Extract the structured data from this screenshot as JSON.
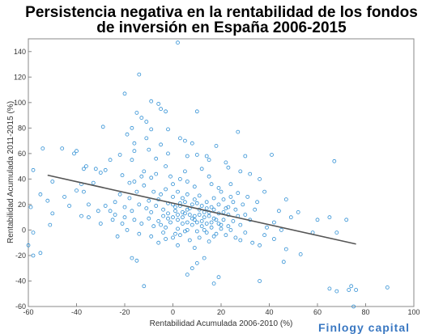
{
  "chart_data": {
    "type": "scatter",
    "title_line1": "Persistencia negativa en la rentabilidad de los fondos",
    "title_line2": "de inversión en España 2006-2015",
    "xlabel": "Rentabilidad Acumulada 2006-2010 (%)",
    "ylabel": "Rentabilidad Acumulada 2011-2015 (%)",
    "xlim": [
      -60,
      100
    ],
    "ylim": [
      -60,
      150
    ],
    "xticks": [
      -60,
      -40,
      -20,
      0,
      20,
      40,
      60,
      80,
      100
    ],
    "yticks": [
      -60,
      -40,
      -20,
      0,
      20,
      40,
      60,
      80,
      100,
      120,
      140
    ],
    "grid": false,
    "marker_color": "#2f8fd4",
    "line_color": "#555555",
    "trend_line": {
      "x": [
        -52,
        76
      ],
      "y": [
        43,
        -11
      ]
    },
    "points": [
      [
        2,
        147
      ],
      [
        -14,
        122
      ],
      [
        -20,
        107
      ],
      [
        -9,
        101
      ],
      [
        -6,
        99
      ],
      [
        -5,
        95
      ],
      [
        -3,
        93
      ],
      [
        -15,
        92
      ],
      [
        10,
        93
      ],
      [
        -13,
        88
      ],
      [
        -11,
        85
      ],
      [
        -29,
        81
      ],
      [
        -17,
        80
      ],
      [
        -9,
        79
      ],
      [
        -2,
        79
      ],
      [
        27,
        77
      ],
      [
        -19,
        75
      ],
      [
        -11,
        72
      ],
      [
        3,
        72
      ],
      [
        5,
        70
      ],
      [
        8,
        68
      ],
      [
        -16,
        68
      ],
      [
        -5,
        67
      ],
      [
        18,
        66
      ],
      [
        -54,
        64
      ],
      [
        -46,
        64
      ],
      [
        -40,
        62
      ],
      [
        -41,
        60
      ],
      [
        -16,
        62
      ],
      [
        -10,
        63
      ],
      [
        -22,
        59
      ],
      [
        -2,
        60
      ],
      [
        6,
        58
      ],
      [
        10,
        59
      ],
      [
        30,
        58
      ],
      [
        41,
        59
      ],
      [
        -7,
        56
      ],
      [
        14,
        58
      ],
      [
        67,
        54
      ],
      [
        -26,
        55
      ],
      [
        -17,
        55
      ],
      [
        15,
        55
      ],
      [
        -36,
        50
      ],
      [
        22,
        53
      ],
      [
        -32,
        48
      ],
      [
        -37,
        48
      ],
      [
        -28,
        47
      ],
      [
        -3,
        50
      ],
      [
        23,
        49
      ],
      [
        -58,
        47
      ],
      [
        -30,
        45
      ],
      [
        -12,
        46
      ],
      [
        5,
        46
      ],
      [
        12,
        48
      ],
      [
        28,
        46
      ],
      [
        32,
        44
      ],
      [
        -21,
        43
      ],
      [
        -9,
        41
      ],
      [
        3,
        40
      ],
      [
        -50,
        38
      ],
      [
        -33,
        37
      ],
      [
        -38,
        36
      ],
      [
        -18,
        37
      ],
      [
        36,
        40
      ],
      [
        15,
        42
      ],
      [
        -40,
        31
      ],
      [
        -37,
        30
      ],
      [
        -55,
        28
      ],
      [
        -45,
        26
      ],
      [
        20,
        30
      ],
      [
        38,
        30
      ],
      [
        47,
        24
      ],
      [
        -35,
        20
      ],
      [
        -43,
        19
      ],
      [
        -28,
        19
      ],
      [
        -31,
        15
      ],
      [
        -59,
        18
      ],
      [
        -52,
        23
      ],
      [
        44,
        15
      ],
      [
        52,
        14
      ],
      [
        49,
        10
      ],
      [
        60,
        8
      ],
      [
        65,
        10
      ],
      [
        72,
        8
      ],
      [
        68,
        -2
      ],
      [
        58,
        -2
      ],
      [
        -50,
        13
      ],
      [
        -58,
        -2
      ],
      [
        -60,
        -12
      ],
      [
        -58,
        -20
      ],
      [
        -55,
        -18
      ],
      [
        -51,
        4
      ],
      [
        -30,
        5
      ],
      [
        -25,
        8
      ],
      [
        -24,
        12
      ],
      [
        -38,
        11
      ],
      [
        -20,
        10
      ],
      [
        -35,
        10
      ],
      [
        26,
        -6
      ],
      [
        33,
        -10
      ],
      [
        36,
        -12
      ],
      [
        42,
        -7
      ],
      [
        47,
        -15
      ],
      [
        53,
        -19
      ],
      [
        46,
        -25
      ],
      [
        -17,
        -22
      ],
      [
        -15,
        -24
      ],
      [
        -12,
        -44
      ],
      [
        10,
        -26
      ],
      [
        13,
        -22
      ],
      [
        8,
        -30
      ],
      [
        19,
        -37
      ],
      [
        17,
        -42
      ],
      [
        6,
        -35
      ],
      [
        65,
        -46
      ],
      [
        68,
        -48
      ],
      [
        73,
        -47
      ],
      [
        74,
        -44
      ],
      [
        76,
        -47
      ],
      [
        89,
        -45
      ],
      [
        75,
        -60
      ],
      [
        36,
        -40
      ],
      [
        -18,
        25
      ],
      [
        -15,
        30
      ],
      [
        -12,
        35
      ],
      [
        -8,
        30
      ],
      [
        -5,
        28
      ],
      [
        -3,
        32
      ],
      [
        0,
        26
      ],
      [
        2,
        30
      ],
      [
        4,
        25
      ],
      [
        6,
        28
      ],
      [
        9,
        24
      ],
      [
        11,
        27
      ],
      [
        14,
        22
      ],
      [
        17,
        25
      ],
      [
        19,
        20
      ],
      [
        21,
        24
      ],
      [
        23,
        18
      ],
      [
        25,
        22
      ],
      [
        -20,
        18
      ],
      [
        -17,
        15
      ],
      [
        -14,
        20
      ],
      [
        -11,
        17
      ],
      [
        -9,
        14
      ],
      [
        -7,
        19
      ],
      [
        -4,
        16
      ],
      [
        -2,
        21
      ],
      [
        1,
        15
      ],
      [
        3,
        19
      ],
      [
        5,
        13
      ],
      [
        7,
        17
      ],
      [
        9,
        11
      ],
      [
        11,
        16
      ],
      [
        13,
        10
      ],
      [
        15,
        14
      ],
      [
        17,
        9
      ],
      [
        19,
        13
      ],
      [
        21,
        8
      ],
      [
        23,
        12
      ],
      [
        25,
        7
      ],
      [
        27,
        11
      ],
      [
        -16,
        8
      ],
      [
        -13,
        5
      ],
      [
        -10,
        9
      ],
      [
        -8,
        3
      ],
      [
        -6,
        7
      ],
      [
        -3,
        2
      ],
      [
        -1,
        6
      ],
      [
        2,
        1
      ],
      [
        4,
        5
      ],
      [
        6,
        0
      ],
      [
        8,
        4
      ],
      [
        10,
        -1
      ],
      [
        12,
        3
      ],
      [
        14,
        -2
      ],
      [
        16,
        2
      ],
      [
        18,
        -3
      ],
      [
        20,
        1
      ],
      [
        22,
        -4
      ],
      [
        24,
        0
      ],
      [
        -19,
        0
      ],
      [
        -14,
        -3
      ],
      [
        -9,
        -5
      ],
      [
        -4,
        -2
      ],
      [
        0,
        -6
      ],
      [
        3,
        -4
      ],
      [
        7,
        -8
      ],
      [
        11,
        -6
      ],
      [
        15,
        -9
      ],
      [
        -6,
        -10
      ],
      [
        2,
        -12
      ],
      [
        9,
        -14
      ],
      [
        5,
        22
      ],
      [
        8,
        20
      ],
      [
        10,
        21
      ],
      [
        12,
        19
      ],
      [
        14,
        17
      ],
      [
        16,
        18
      ],
      [
        6,
        16
      ],
      [
        4,
        14
      ],
      [
        2,
        12
      ],
      [
        0,
        10
      ],
      [
        -2,
        9
      ],
      [
        -4,
        11
      ],
      [
        1,
        18
      ],
      [
        3,
        21
      ],
      [
        7,
        12
      ],
      [
        9,
        8
      ],
      [
        11,
        12
      ],
      [
        13,
        14
      ],
      [
        15,
        11
      ],
      [
        17,
        16
      ],
      [
        19,
        5
      ],
      [
        21,
        14
      ],
      [
        23,
        3
      ],
      [
        26,
        16
      ],
      [
        28,
        4
      ],
      [
        30,
        12
      ],
      [
        32,
        8
      ],
      [
        34,
        16
      ],
      [
        29,
        20
      ],
      [
        31,
        26
      ],
      [
        35,
        22
      ],
      [
        -22,
        28
      ],
      [
        -24,
        22
      ],
      [
        -26,
        15
      ],
      [
        -21,
        5
      ],
      [
        -23,
        -5
      ],
      [
        -16,
        38
      ],
      [
        -13,
        42
      ],
      [
        -7,
        44
      ],
      [
        0,
        36
      ],
      [
        6,
        38
      ],
      [
        9,
        34
      ],
      [
        -1,
        42
      ],
      [
        16,
        36
      ],
      [
        19,
        33
      ],
      [
        24,
        36
      ],
      [
        -10,
        23
      ],
      [
        -6,
        24
      ],
      [
        -2,
        13
      ],
      [
        0,
        20
      ],
      [
        2,
        8
      ],
      [
        4,
        10
      ],
      [
        6,
        6
      ],
      [
        8,
        9
      ],
      [
        10,
        6
      ],
      [
        12,
        7
      ],
      [
        14,
        5
      ],
      [
        16,
        6
      ],
      [
        18,
        8
      ],
      [
        20,
        4
      ],
      [
        -5,
        4
      ],
      [
        -3,
        -7
      ],
      [
        1,
        -3
      ],
      [
        5,
        -1
      ],
      [
        13,
        0
      ],
      [
        17,
        -5
      ],
      [
        22,
        17
      ],
      [
        24,
        26
      ],
      [
        27,
        29
      ],
      [
        39,
        2
      ],
      [
        42,
        6
      ],
      [
        45,
        0
      ],
      [
        38,
        -4
      ],
      [
        30,
        -2
      ],
      [
        28,
        -8
      ]
    ]
  },
  "watermark": "Finlogy capital"
}
